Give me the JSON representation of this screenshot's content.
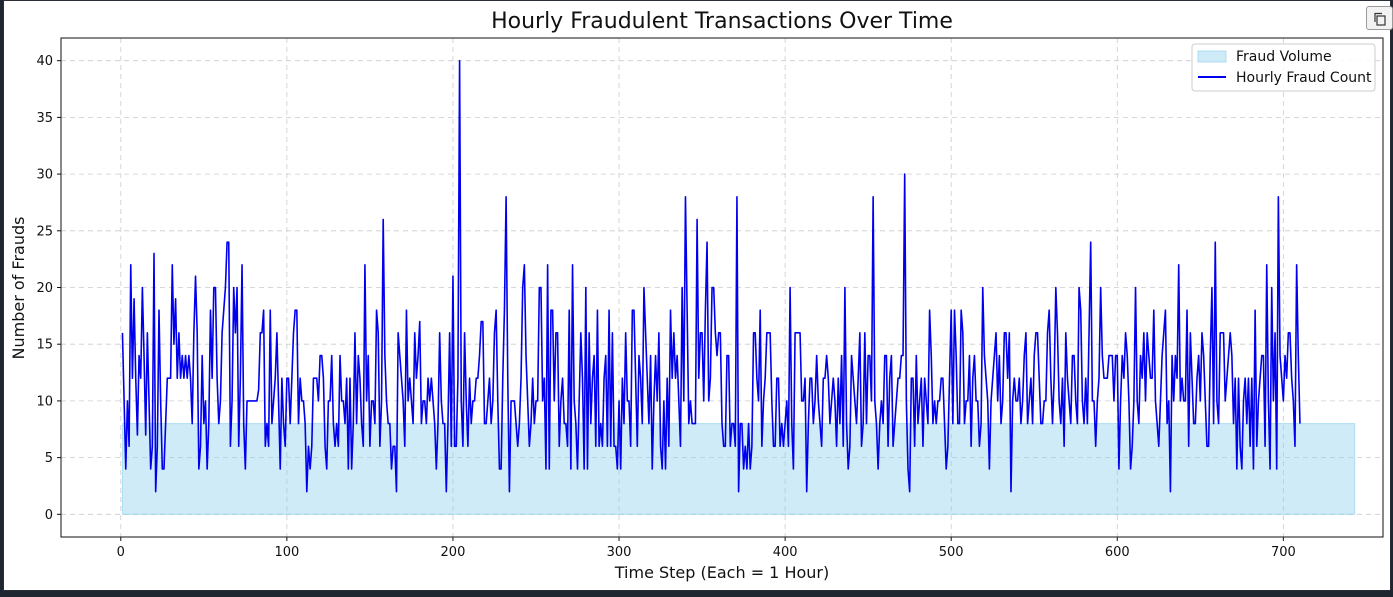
{
  "toolbar": {
    "copy_icon": "copy-icon"
  },
  "colors": {
    "line": "#0000ee",
    "fill": "#87ceeb",
    "grid": "#cccccc",
    "frame": "#111111"
  },
  "chart_data": {
    "type": "area",
    "title": "Hourly Fraudulent Transactions Over Time",
    "xlabel": "Time Step (Each = 1 Hour)",
    "ylabel": "Number of Frauds",
    "xlim": [
      -36,
      760
    ],
    "ylim": [
      -2,
      42
    ],
    "xticks": [
      0,
      100,
      200,
      300,
      400,
      500,
      600,
      700
    ],
    "yticks": [
      0,
      5,
      10,
      15,
      20,
      25,
      30,
      35,
      40
    ],
    "grid": true,
    "legend_position": "top-right",
    "series": [
      {
        "name": "Fraud Volume",
        "kind": "fill",
        "y_const": 8,
        "x_start": 1,
        "x_end": 743
      },
      {
        "name": "Hourly Fraud Count",
        "kind": "line",
        "x_start": 1,
        "x_step": 1,
        "values": [
          16,
          10,
          4,
          10,
          6,
          22,
          12,
          19,
          12,
          7,
          14,
          12,
          20,
          14,
          7,
          16,
          10,
          4,
          6,
          23,
          2,
          6,
          18,
          10,
          4,
          4,
          8,
          12,
          12,
          12,
          22,
          15,
          19,
          12,
          16,
          12,
          14,
          12,
          14,
          12,
          14,
          12,
          8,
          16,
          21,
          16,
          4,
          6,
          14,
          8,
          10,
          4,
          8,
          18,
          12,
          20,
          20,
          12,
          8,
          10,
          16,
          18,
          20,
          24,
          24,
          6,
          10,
          20,
          16,
          20,
          6,
          12,
          22,
          8,
          4,
          10,
          10,
          10,
          10,
          10,
          10,
          10,
          11,
          16,
          16,
          18,
          6,
          8,
          6,
          18,
          8,
          10,
          12,
          16,
          10,
          4,
          12,
          8,
          6,
          12,
          12,
          8,
          12,
          16,
          18,
          18,
          8,
          12,
          10,
          10,
          8,
          2,
          6,
          4,
          6,
          12,
          12,
          12,
          10,
          14,
          14,
          12,
          6,
          4,
          10,
          10,
          14,
          8,
          6,
          8,
          6,
          14,
          10,
          10,
          8,
          12,
          4,
          12,
          4,
          8,
          16,
          8,
          14,
          12,
          8,
          6,
          22,
          10,
          14,
          6,
          10,
          10,
          8,
          18,
          16,
          6,
          10,
          26,
          14,
          10,
          8,
          8,
          4,
          6,
          6,
          2,
          16,
          14,
          12,
          10,
          6,
          18,
          10,
          12,
          10,
          8,
          16,
          12,
          14,
          17,
          8,
          10,
          10,
          8,
          12,
          10,
          12,
          10,
          8,
          4,
          8,
          16,
          10,
          8,
          8,
          2,
          8,
          16,
          6,
          21,
          6,
          6,
          12,
          40,
          10,
          6,
          16,
          10,
          6,
          12,
          8,
          10,
          10,
          12,
          12,
          14,
          17,
          17,
          8,
          8,
          10,
          12,
          8,
          10,
          16,
          18,
          10,
          4,
          4,
          12,
          18,
          28,
          12,
          2,
          10,
          10,
          10,
          8,
          6,
          8,
          12,
          20,
          22,
          14,
          10,
          6,
          8,
          12,
          8,
          10,
          10,
          20,
          20,
          10,
          12,
          4,
          22,
          4,
          18,
          18,
          10,
          16,
          16,
          6,
          10,
          12,
          8,
          8,
          6,
          18,
          4,
          22,
          10,
          8,
          4,
          10,
          16,
          12,
          4,
          20,
          4,
          16,
          8,
          12,
          14,
          6,
          18,
          6,
          8,
          6,
          12,
          14,
          6,
          18,
          6,
          16,
          6,
          6,
          4,
          10,
          4,
          12,
          8,
          16,
          10,
          10,
          6,
          18,
          18,
          12,
          6,
          14,
          12,
          8,
          20,
          16,
          12,
          8,
          14,
          4,
          10,
          14,
          10,
          16,
          6,
          4,
          10,
          4,
          12,
          6,
          18,
          12,
          16,
          12,
          14,
          10,
          6,
          20,
          10,
          28,
          18,
          8,
          10,
          8,
          8,
          8,
          26,
          12,
          16,
          16,
          10,
          18,
          24,
          10,
          12,
          20,
          20,
          16,
          14,
          16,
          16,
          8,
          6,
          6,
          14,
          14,
          6,
          8,
          8,
          6,
          28,
          2,
          8,
          8,
          4,
          6,
          4,
          8,
          4,
          6,
          16,
          16,
          12,
          10,
          18,
          6,
          10,
          12,
          16,
          16,
          16,
          10,
          6,
          6,
          12,
          12,
          6,
          8,
          6,
          8,
          10,
          6,
          20,
          8,
          4,
          16,
          16,
          16,
          16,
          10,
          10,
          12,
          2,
          8,
          12,
          12,
          8,
          10,
          14,
          10,
          8,
          6,
          12,
          12,
          14,
          12,
          8,
          10,
          12,
          10,
          6,
          12,
          8,
          14,
          6,
          20,
          8,
          4,
          6,
          14,
          12,
          10,
          8,
          12,
          16,
          6,
          8,
          16,
          8,
          14,
          14,
          10,
          28,
          10,
          8,
          4,
          8,
          10,
          8,
          14,
          14,
          6,
          12,
          14,
          6,
          8,
          10,
          12,
          12,
          14,
          14,
          30,
          10,
          4,
          2,
          12,
          12,
          6,
          14,
          8,
          10,
          12,
          6,
          12,
          10,
          8,
          18,
          14,
          8,
          10,
          8,
          10,
          10,
          12,
          12,
          8,
          4,
          6,
          12,
          18,
          8,
          18,
          14,
          8,
          8,
          18,
          16,
          8,
          10,
          10,
          14,
          6,
          12,
          14,
          10,
          10,
          6,
          8,
          20,
          14,
          12,
          10,
          4,
          10,
          12,
          14,
          16,
          10,
          14,
          8,
          10,
          16,
          16,
          12,
          16,
          2,
          10,
          12,
          10,
          10,
          12,
          8,
          10,
          14,
          16,
          8,
          10,
          12,
          8,
          14,
          16,
          16,
          12,
          8,
          8,
          10,
          10,
          16,
          18,
          12,
          8,
          12,
          20,
          16,
          10,
          8,
          12,
          6,
          16,
          12,
          10,
          8,
          14,
          14,
          10,
          8,
          20,
          18,
          10,
          8,
          12,
          8,
          16,
          24,
          10,
          10,
          6,
          10,
          12,
          20,
          14,
          12,
          12,
          12,
          14,
          14,
          14,
          10,
          14,
          14,
          4,
          10,
          14,
          12,
          16,
          14,
          10,
          4,
          6,
          10,
          20,
          10,
          8,
          14,
          12,
          16,
          10,
          16,
          14,
          12,
          12,
          18,
          10,
          8,
          6,
          10,
          14,
          16,
          18,
          8,
          10,
          2,
          14,
          10,
          14,
          12,
          22,
          10,
          12,
          10,
          10,
          18,
          6,
          16,
          12,
          8,
          8,
          12,
          14,
          10,
          16,
          14,
          10,
          6,
          6,
          14,
          20,
          8,
          24,
          10,
          8,
          16,
          16,
          16,
          10,
          12,
          14,
          16,
          14,
          8,
          12,
          4,
          12,
          6,
          4,
          10,
          12,
          8,
          12,
          6,
          12,
          4,
          18,
          6,
          10,
          12,
          14,
          14,
          6,
          22,
          10,
          4,
          20,
          10,
          16,
          4,
          28,
          14,
          12,
          10,
          14,
          12,
          16,
          16,
          12,
          10,
          6,
          22,
          14,
          8
        ]
      }
    ]
  }
}
